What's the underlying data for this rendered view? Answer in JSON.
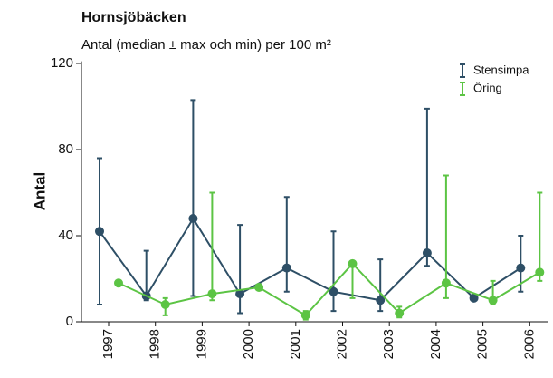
{
  "chart_data": {
    "type": "errorline",
    "title": "Hornsjöbäcken",
    "subtitle": "Antal (median ± max och min) per 100 m²",
    "y_label": "Antal",
    "categories": [
      "1997",
      "1998",
      "1999",
      "2000",
      "2001",
      "2002",
      "2003",
      "2004",
      "2005",
      "2006"
    ],
    "series": [
      {
        "name": "Stensimpa",
        "color": "#2e4f66",
        "values": [
          42,
          12,
          48,
          13,
          25,
          14,
          10,
          32,
          11,
          25
        ],
        "max": [
          76,
          33,
          103,
          45,
          58,
          42,
          29,
          99,
          12,
          40
        ],
        "min": [
          8,
          10,
          12,
          4,
          14,
          5,
          5,
          26,
          10,
          14
        ]
      },
      {
        "name": "Öring",
        "color": "#5cc444",
        "values": [
          18,
          8,
          13,
          16,
          3,
          27,
          4,
          18,
          10,
          23
        ],
        "max": [
          null,
          11,
          60,
          null,
          5,
          28,
          7,
          68,
          19,
          60
        ],
        "min": [
          null,
          3,
          10,
          null,
          1,
          11,
          2,
          11,
          8,
          19
        ]
      }
    ],
    "ylim": [
      0,
      121
    ],
    "yticks": [
      0,
      40,
      80,
      120
    ],
    "legend": "upper right"
  }
}
